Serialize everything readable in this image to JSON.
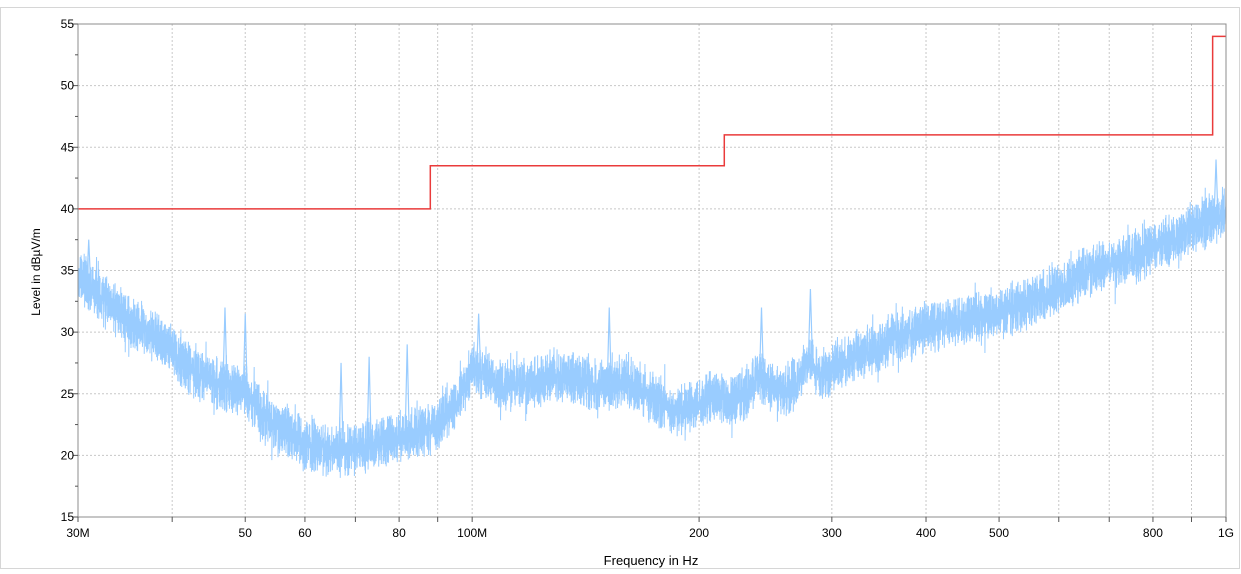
{
  "chart_data": {
    "type": "line",
    "xlabel": "Frequency in Hz",
    "ylabel": "Level in dBµV/m",
    "x_scale": "log",
    "xlim": [
      30000000,
      1000000000
    ],
    "ylim": [
      15,
      55
    ],
    "grid": true,
    "y_ticks": [
      15,
      20,
      25,
      30,
      35,
      40,
      45,
      50,
      55
    ],
    "x_ticks": [
      {
        "value": 30000000,
        "label": "30M"
      },
      {
        "value": 50000000,
        "label": "50"
      },
      {
        "value": 60000000,
        "label": "60"
      },
      {
        "value": 80000000,
        "label": "80"
      },
      {
        "value": 100000000,
        "label": "100M"
      },
      {
        "value": 200000000,
        "label": "200"
      },
      {
        "value": 300000000,
        "label": "300"
      },
      {
        "value": 400000000,
        "label": "400"
      },
      {
        "value": 500000000,
        "label": "500"
      },
      {
        "value": 800000000,
        "label": "800"
      },
      {
        "value": 1000000000,
        "label": "1G"
      }
    ],
    "x_minor_ticks": [
      40000000,
      70000000,
      90000000,
      600000000,
      700000000,
      900000000
    ],
    "series": [
      {
        "color": "#ea3b3b",
        "style": "step",
        "x": [
          30000000,
          88000000,
          88000000,
          216000000,
          216000000,
          960000000,
          960000000,
          1000000000
        ],
        "values": [
          40,
          40,
          43.5,
          43.5,
          46,
          46,
          54,
          54
        ]
      },
      {
        "color": "#99ccff",
        "style": "noisy-line",
        "x": [
          30000000,
          32000000,
          34000000,
          36000000,
          38000000,
          40000000,
          42000000,
          45000000,
          48000000,
          50000000,
          53000000,
          56000000,
          60000000,
          65000000,
          70000000,
          75000000,
          80000000,
          85000000,
          90000000,
          95000000,
          100000000,
          105000000,
          110000000,
          120000000,
          130000000,
          140000000,
          150000000,
          160000000,
          170000000,
          180000000,
          190000000,
          200000000,
          210000000,
          220000000,
          230000000,
          240000000,
          250000000,
          260000000,
          270000000,
          280000000,
          290000000,
          300000000,
          320000000,
          340000000,
          360000000,
          380000000,
          400000000,
          450000000,
          500000000,
          550000000,
          600000000,
          650000000,
          700000000,
          750000000,
          800000000,
          850000000,
          900000000,
          950000000,
          1000000000
        ],
        "values": [
          34.5,
          33,
          31.5,
          30.5,
          29.5,
          28.5,
          27,
          26,
          25.5,
          25,
          23,
          22,
          21,
          20.5,
          20.5,
          21,
          21.5,
          22,
          22.5,
          24,
          27,
          26.5,
          25.5,
          26,
          26.5,
          26,
          25.5,
          26,
          25,
          24,
          23.5,
          24,
          25,
          24.5,
          25,
          26.5,
          25.5,
          25,
          26,
          28,
          26.5,
          27,
          28,
          28.5,
          29.5,
          30,
          30.5,
          31,
          31.5,
          32.5,
          33.5,
          35,
          35.5,
          36,
          37,
          37.5,
          38.5,
          39,
          39.5
        ],
        "peaks": [
          {
            "x": 31000000,
            "y": 37.5
          },
          {
            "x": 47000000,
            "y": 32
          },
          {
            "x": 50000000,
            "y": 31.5
          },
          {
            "x": 67000000,
            "y": 27.5
          },
          {
            "x": 73000000,
            "y": 28
          },
          {
            "x": 82000000,
            "y": 29
          },
          {
            "x": 102000000,
            "y": 31.5
          },
          {
            "x": 152000000,
            "y": 32
          },
          {
            "x": 242000000,
            "y": 32
          },
          {
            "x": 281000000,
            "y": 33.5
          },
          {
            "x": 970000000,
            "y": 44
          }
        ]
      }
    ]
  }
}
